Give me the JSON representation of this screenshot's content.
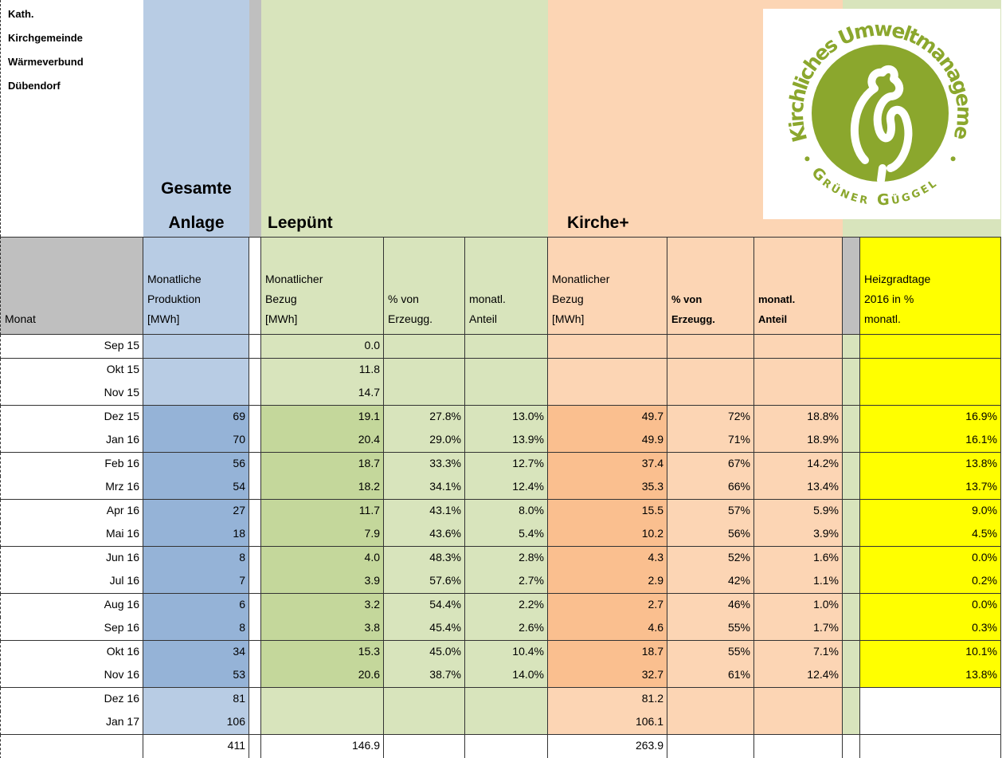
{
  "title": [
    "Kath.",
    "Kirchgemeinde",
    "Wärmeverbund",
    "Dübendorf"
  ],
  "groups": {
    "gesamt": [
      "Gesamte",
      "Anlage"
    ],
    "leepuent": "Leepünt",
    "kirche": "Kirche+"
  },
  "logo": {
    "arc": "Kirchliches Umweltmanagement",
    "bottom": "Grüner Güggel"
  },
  "headers": [
    [
      "Monat"
    ],
    [
      "Monatliche",
      "Produktion",
      "[MWh]"
    ],
    [
      "Monatlicher",
      "Bezug",
      "[MWh]"
    ],
    [
      "% von",
      "Erzeugg."
    ],
    [
      "monatl.",
      "Anteil"
    ],
    [
      "Monatlicher",
      "Bezug",
      "[MWh]"
    ],
    [
      "% von",
      "Erzeugg."
    ],
    [
      "monatl.",
      "Anteil"
    ],
    [
      "Heizgradtage",
      "2016 in %",
      "monatl."
    ]
  ],
  "rows": [
    [
      "Sep 15",
      null,
      "0.0",
      null,
      null,
      null,
      null,
      null,
      null
    ],
    [
      "Okt 15",
      null,
      "11.8",
      null,
      null,
      null,
      null,
      null,
      null
    ],
    [
      "Nov 15",
      null,
      "14.7",
      null,
      null,
      null,
      null,
      null,
      null
    ],
    [
      "Dez 15",
      "69",
      "19.1",
      "27.8%",
      "13.0%",
      "49.7",
      "72%",
      "18.8%",
      "16.9%"
    ],
    [
      "Jan 16",
      "70",
      "20.4",
      "29.0%",
      "13.9%",
      "49.9",
      "71%",
      "18.9%",
      "16.1%"
    ],
    [
      "Feb 16",
      "56",
      "18.7",
      "33.3%",
      "12.7%",
      "37.4",
      "67%",
      "14.2%",
      "13.8%"
    ],
    [
      "Mrz 16",
      "54",
      "18.2",
      "34.1%",
      "12.4%",
      "35.3",
      "66%",
      "13.4%",
      "13.7%"
    ],
    [
      "Apr 16",
      "27",
      "11.7",
      "43.1%",
      "8.0%",
      "15.5",
      "57%",
      "5.9%",
      "9.0%"
    ],
    [
      "Mai 16",
      "18",
      "7.9",
      "43.6%",
      "5.4%",
      "10.2",
      "56%",
      "3.9%",
      "4.5%"
    ],
    [
      "Jun 16",
      "8",
      "4.0",
      "48.3%",
      "2.8%",
      "4.3",
      "52%",
      "1.6%",
      "0.0%"
    ],
    [
      "Jul 16",
      "7",
      "3.9",
      "57.6%",
      "2.7%",
      "2.9",
      "42%",
      "1.1%",
      "0.2%"
    ],
    [
      "Aug 16",
      "6",
      "3.2",
      "54.4%",
      "2.2%",
      "2.7",
      "46%",
      "1.0%",
      "0.0%"
    ],
    [
      "Sep 16",
      "8",
      "3.8",
      "45.4%",
      "2.6%",
      "4.6",
      "55%",
      "1.7%",
      "0.3%"
    ],
    [
      "Okt 16",
      "34",
      "15.3",
      "45.0%",
      "10.4%",
      "18.7",
      "55%",
      "7.1%",
      "10.1%"
    ],
    [
      "Nov 16",
      "53",
      "20.6",
      "38.7%",
      "14.0%",
      "32.7",
      "61%",
      "12.4%",
      "13.8%"
    ],
    [
      "Dez 16",
      "81",
      null,
      null,
      null,
      "81.2",
      null,
      null,
      null
    ],
    [
      "Jan 17",
      "106",
      null,
      null,
      null,
      "106.1",
      null,
      null,
      null
    ],
    [
      null,
      "411",
      "146.9",
      null,
      null,
      "263.9",
      null,
      null,
      null
    ]
  ]
}
